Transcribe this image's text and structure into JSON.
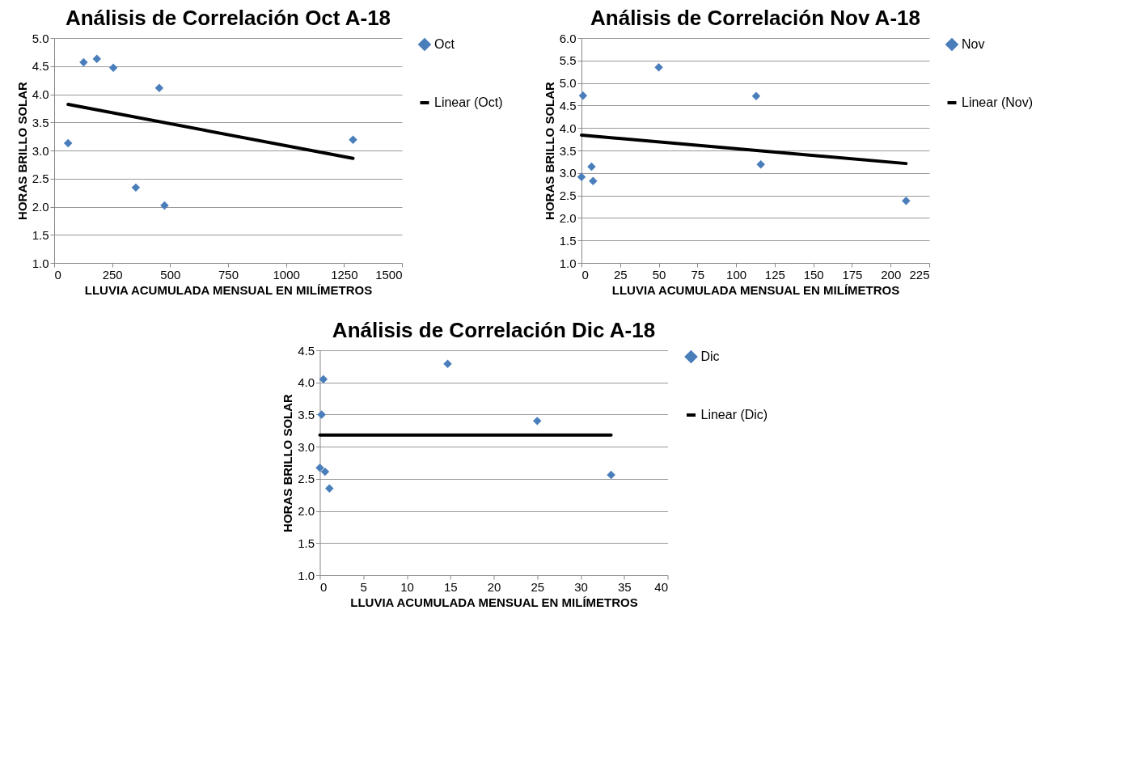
{
  "chart_data": [
    {
      "type": "scatter",
      "title": "Análisis de Correlación Oct A-18",
      "xlabel": "LLUVIA ACUMULADA  MENSUAL  EN MILÍMETROS",
      "ylabel": "HORAS BRILLO SOLAR",
      "series": [
        {
          "name": "Oct",
          "color": "#4a7ebb",
          "marker": "diamond",
          "x": [
            60,
            127,
            184,
            255,
            453,
            352,
            476,
            1289
          ],
          "values": [
            3.13,
            4.57,
            4.63,
            4.47,
            4.11,
            2.34,
            2.02,
            3.19
          ]
        },
        {
          "name": "Linear (Oct)",
          "type": "line",
          "marker": "none",
          "color": "#000000",
          "x": [
            60,
            1289
          ],
          "values": [
            3.82,
            2.86
          ]
        }
      ],
      "xlim": [
        0,
        1500
      ],
      "xticks": [
        0,
        250,
        500,
        750,
        1000,
        1250,
        1500
      ],
      "ylim": [
        1,
        5
      ],
      "yticks": [
        {
          "value": 1,
          "label": "1.0"
        },
        {
          "value": 1.5,
          "label": "1.5"
        },
        {
          "value": 2,
          "label": "2.0"
        },
        {
          "value": 2.5,
          "label": "2.5"
        },
        {
          "value": 3,
          "label": "3.0"
        },
        {
          "value": 3.5,
          "label": "3.5"
        },
        {
          "value": 4,
          "label": "4.0"
        },
        {
          "value": 4.5,
          "label": "4.5"
        },
        {
          "value": 5,
          "label": "5.0"
        }
      ],
      "grid": "y",
      "legend": "right"
    },
    {
      "type": "scatter",
      "title": "Análisis de Correlación Nov A-18",
      "xlabel": "LLUVIA ACUMULADA  MENSUAL  EN MILÍMETROS",
      "ylabel": "HORAS BRILLO SOLAR",
      "series": [
        {
          "name": "Nov",
          "color": "#4a7ebb",
          "marker": "diamond",
          "x": [
            1,
            50,
            113,
            6.5,
            0,
            7.5,
            116,
            210
          ],
          "values": [
            4.72,
            5.35,
            4.71,
            3.14,
            2.91,
            2.82,
            3.19,
            2.38
          ]
        },
        {
          "name": "Linear (Nov)",
          "type": "line",
          "marker": "none",
          "color": "#000000",
          "x": [
            0,
            210
          ],
          "values": [
            3.84,
            3.21
          ]
        }
      ],
      "xlim": [
        0,
        225
      ],
      "xticks": [
        0,
        25,
        50,
        75,
        100,
        125,
        150,
        175,
        200,
        225
      ],
      "ylim": [
        1,
        6
      ],
      "yticks": [
        {
          "value": 1,
          "label": "1.0"
        },
        {
          "value": 1.5,
          "label": "1.5"
        },
        {
          "value": 2,
          "label": "2.0"
        },
        {
          "value": 2.5,
          "label": "2.5"
        },
        {
          "value": 3,
          "label": "3.0"
        },
        {
          "value": 3.5,
          "label": "3.5"
        },
        {
          "value": 4,
          "label": "4.0"
        },
        {
          "value": 4.5,
          "label": "4.5"
        },
        {
          "value": 5,
          "label": "5.0"
        },
        {
          "value": 5.5,
          "label": "5.5"
        },
        {
          "value": 6,
          "label": "6.0"
        }
      ],
      "grid": "y",
      "legend": "right"
    },
    {
      "type": "scatter",
      "title": "Análisis de Correlación Dic A-18",
      "xlabel": "LLUVIA ACUMULADA  MENSUAL  EN MILÍMETROS",
      "ylabel": "HORAS BRILLO SOLAR",
      "series": [
        {
          "name": "Dic",
          "color": "#4a7ebb",
          "marker": "diamond",
          "x": [
            0.4,
            14.7,
            0.2,
            25,
            0,
            0.6,
            1.1,
            33.5
          ],
          "values": [
            4.05,
            4.29,
            3.5,
            3.4,
            2.67,
            2.61,
            2.35,
            2.56
          ]
        },
        {
          "name": "Linear (Dic)",
          "type": "line",
          "marker": "none",
          "color": "#000000",
          "x": [
            0,
            33.5
          ],
          "values": [
            3.18,
            3.18
          ]
        }
      ],
      "xlim": [
        0,
        40
      ],
      "xticks": [
        0,
        5,
        10,
        15,
        20,
        25,
        30,
        35,
        40
      ],
      "ylim": [
        1,
        4.5
      ],
      "yticks": [
        {
          "value": 1,
          "label": "1.0"
        },
        {
          "value": 1.5,
          "label": "1.5"
        },
        {
          "value": 2,
          "label": "2.0"
        },
        {
          "value": 2.5,
          "label": "2.5"
        },
        {
          "value": 3,
          "label": "3.0"
        },
        {
          "value": 3.5,
          "label": "3.5"
        },
        {
          "value": 4,
          "label": "4.0"
        },
        {
          "value": 4.5,
          "label": "4.5"
        }
      ],
      "grid": "y",
      "legend": "right"
    }
  ]
}
